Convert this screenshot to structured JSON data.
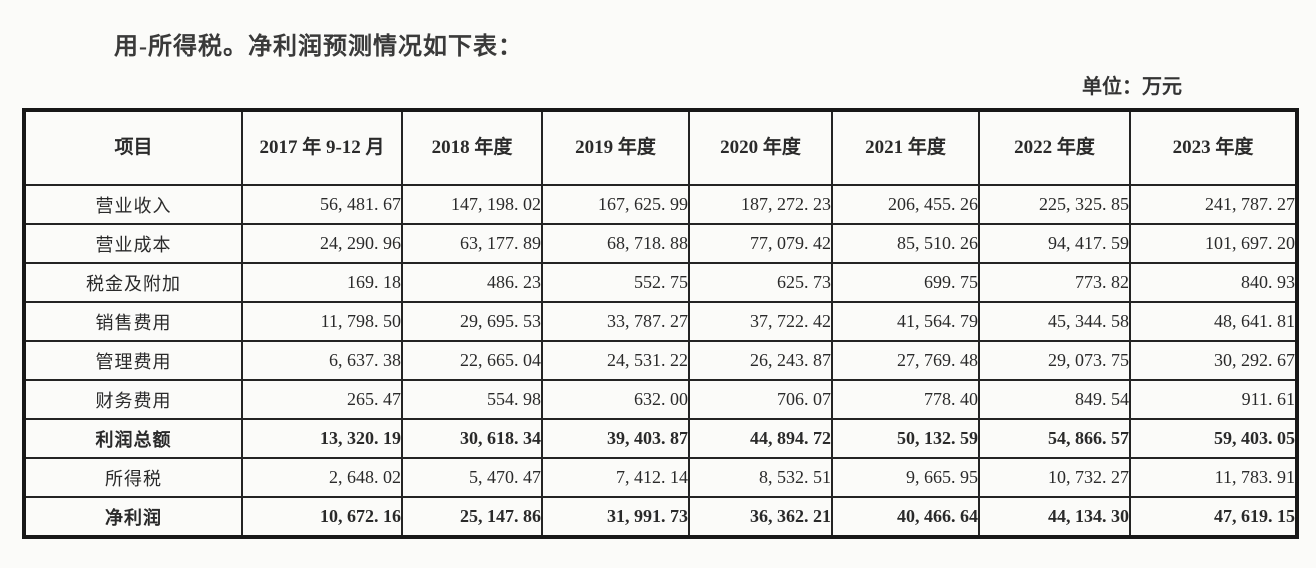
{
  "page": {
    "intro_text": "用-所得税。净利润预测情况如下表：",
    "unit_label": "单位：万元"
  },
  "colors": {
    "page_background": "#fbfbf9",
    "table_border": "#181818",
    "text": "#2a2a2a"
  },
  "table": {
    "columns": [
      "项目",
      "2017 年 9-12 月",
      "2018 年度",
      "2019 年度",
      "2020 年度",
      "2021 年度",
      "2022 年度",
      "2023 年度"
    ],
    "rows": [
      {
        "label": "营业收入",
        "bold": false,
        "values": [
          "56, 481. 67",
          "147, 198. 02",
          "167, 625. 99",
          "187, 272. 23",
          "206, 455. 26",
          "225, 325. 85",
          "241, 787. 27"
        ]
      },
      {
        "label": "营业成本",
        "bold": false,
        "values": [
          "24, 290. 96",
          "63, 177. 89",
          "68, 718. 88",
          "77, 079. 42",
          "85, 510. 26",
          "94, 417. 59",
          "101, 697. 20"
        ]
      },
      {
        "label": "税金及附加",
        "bold": false,
        "values": [
          "169. 18",
          "486. 23",
          "552. 75",
          "625. 73",
          "699. 75",
          "773. 82",
          "840. 93"
        ]
      },
      {
        "label": "销售费用",
        "bold": false,
        "values": [
          "11, 798. 50",
          "29, 695. 53",
          "33, 787. 27",
          "37, 722. 42",
          "41, 564. 79",
          "45, 344. 58",
          "48, 641. 81"
        ]
      },
      {
        "label": "管理费用",
        "bold": false,
        "values": [
          "6, 637. 38",
          "22, 665. 04",
          "24, 531. 22",
          "26, 243. 87",
          "27, 769. 48",
          "29, 073. 75",
          "30, 292. 67"
        ]
      },
      {
        "label": "财务费用",
        "bold": false,
        "values": [
          "265. 47",
          "554. 98",
          "632. 00",
          "706. 07",
          "778. 40",
          "849. 54",
          "911. 61"
        ]
      },
      {
        "label": "利润总额",
        "bold": true,
        "values": [
          "13, 320. 19",
          "30, 618. 34",
          "39, 403. 87",
          "44, 894. 72",
          "50, 132. 59",
          "54, 866. 57",
          "59, 403. 05"
        ]
      },
      {
        "label": "所得税",
        "bold": false,
        "values": [
          "2, 648. 02",
          "5, 470. 47",
          "7, 412. 14",
          "8, 532. 51",
          "9, 665. 95",
          "10, 732. 27",
          "11, 783. 91"
        ]
      },
      {
        "label": "净利润",
        "bold": true,
        "values": [
          "10, 672. 16",
          "25, 147. 86",
          "31, 991. 73",
          "36, 362. 21",
          "40, 466. 64",
          "44, 134. 30",
          "47, 619. 15"
        ]
      }
    ]
  }
}
